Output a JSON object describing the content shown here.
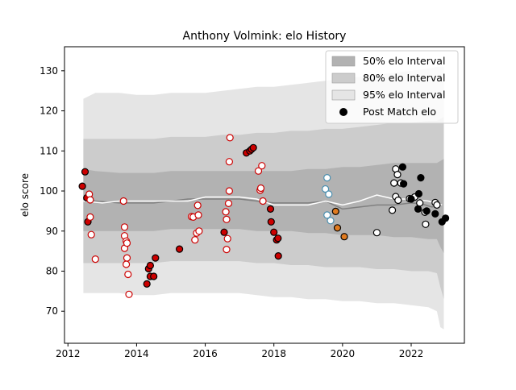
{
  "chart_data": {
    "type": "scatter",
    "title": "Anthony Volmink: elo History",
    "xlabel": "",
    "ylabel": "elo score",
    "xlim": [
      2011.9,
      2023.55
    ],
    "ylim": [
      62,
      136
    ],
    "x_ticks": [
      2012,
      2014,
      2016,
      2018,
      2020,
      2022
    ],
    "y_ticks": [
      70,
      80,
      90,
      100,
      110,
      120,
      130
    ],
    "grid": false,
    "legend_position": "top-right",
    "legend": [
      {
        "label": "50% elo Interval",
        "kind": "patch",
        "color": "#b2b2b2"
      },
      {
        "label": "80% elo Interval",
        "kind": "patch",
        "color": "#cccccc"
      },
      {
        "label": "95% elo Interval",
        "kind": "patch",
        "color": "#e5e5e5"
      },
      {
        "label": "Post Match elo",
        "kind": "marker",
        "color": "#000000"
      }
    ],
    "bands": {
      "x": [
        2012.45,
        2012.8,
        2013.5,
        2014.0,
        2014.5,
        2015.0,
        2015.5,
        2016.0,
        2016.5,
        2017.0,
        2017.5,
        2018.0,
        2018.5,
        2019.0,
        2019.5,
        2020.0,
        2020.5,
        2021.0,
        2021.5,
        2022.0,
        2022.5,
        2022.75,
        2022.85,
        2022.95
      ],
      "p95_low": [
        74.5,
        74.5,
        74.5,
        74.0,
        74.0,
        74.5,
        74.5,
        74.5,
        74.5,
        74.5,
        74.0,
        73.5,
        73.5,
        73.0,
        73.0,
        72.5,
        72.5,
        72.0,
        72.0,
        71.5,
        71.0,
        70.0,
        66.0,
        65.5
      ],
      "p80_low": [
        82.0,
        82.0,
        82.0,
        82.0,
        82.0,
        82.5,
        82.5,
        82.5,
        82.5,
        82.5,
        82.0,
        82.0,
        81.5,
        81.5,
        81.0,
        81.0,
        81.0,
        80.5,
        80.5,
        80.0,
        80.0,
        79.5,
        76.0,
        73.0
      ],
      "p50_low": [
        90.0,
        90.0,
        90.0,
        90.0,
        90.0,
        90.5,
        90.5,
        90.5,
        90.5,
        90.5,
        90.0,
        90.0,
        90.0,
        89.5,
        89.5,
        89.0,
        89.0,
        89.0,
        88.5,
        88.5,
        88.0,
        88.0,
        86.0,
        84.5
      ],
      "p50_high": [
        105.5,
        105.0,
        104.5,
        104.5,
        104.5,
        105.0,
        105.0,
        105.0,
        105.0,
        105.0,
        105.0,
        105.0,
        105.0,
        105.5,
        105.5,
        106.0,
        106.0,
        106.5,
        107.0,
        107.0,
        107.0,
        107.0,
        107.5,
        108.0
      ],
      "p80_high": [
        113.0,
        113.0,
        113.0,
        113.0,
        113.0,
        113.5,
        113.5,
        113.5,
        114.0,
        114.0,
        114.5,
        114.5,
        115.0,
        115.0,
        115.5,
        115.5,
        116.0,
        116.5,
        117.0,
        117.0,
        117.5,
        117.5,
        118.0,
        118.5
      ],
      "p95_high": [
        123.0,
        124.5,
        124.5,
        124.0,
        124.0,
        124.5,
        124.5,
        124.5,
        125.0,
        125.5,
        126.0,
        126.0,
        126.5,
        127.0,
        127.5,
        128.0,
        128.5,
        129.0,
        129.5,
        130.0,
        130.5,
        131.0,
        131.0,
        131.0
      ]
    },
    "lines": [
      {
        "color": "#808080",
        "x": [
          2012.45,
          2012.8,
          2013.5,
          2014.5,
          2015.0,
          2015.5,
          2016.0,
          2016.5,
          2017.0,
          2017.5,
          2018.0,
          2018.5,
          2019.0,
          2019.5,
          2020.0,
          2020.5,
          2021.0,
          2021.5,
          2022.0,
          2022.3,
          2022.6,
          2022.9
        ],
        "y": [
          98.0,
          97.5,
          97.0,
          97.0,
          97.5,
          98.0,
          98.0,
          98.0,
          98.0,
          97.5,
          97.0,
          97.0,
          97.0,
          97.5,
          95.5,
          96.0,
          96.5,
          96.5,
          97.0,
          96.8,
          96.0,
          96.5
        ]
      },
      {
        "color": "#ffffff",
        "x": [
          2012.45,
          2013.0,
          2013.5,
          2014.0,
          2014.5,
          2015.0,
          2015.5,
          2016.0,
          2016.5,
          2017.0,
          2017.5,
          2018.0,
          2018.5,
          2019.0,
          2019.5,
          2020.0,
          2020.5,
          2021.0,
          2021.5,
          2022.0,
          2022.5,
          2022.9
        ],
        "y": [
          97.5,
          97.0,
          97.5,
          97.5,
          97.5,
          97.5,
          97.5,
          98.5,
          98.5,
          98.5,
          98.0,
          96.5,
          96.5,
          96.5,
          97.5,
          96.5,
          97.5,
          99.0,
          98.0,
          98.0,
          97.5,
          96.5
        ]
      }
    ],
    "series": [
      {
        "color": "#cc0000",
        "edge": "#000000",
        "points": [
          [
            2012.42,
            101.2
          ],
          [
            2012.5,
            104.8
          ],
          [
            2012.55,
            98.3
          ],
          [
            2012.58,
            92.3
          ],
          [
            2014.3,
            76.8
          ],
          [
            2014.35,
            80.6
          ],
          [
            2014.4,
            81.4
          ],
          [
            2014.4,
            78.7
          ],
          [
            2014.5,
            78.7
          ],
          [
            2014.55,
            83.3
          ],
          [
            2015.25,
            85.5
          ],
          [
            2016.55,
            89.7
          ],
          [
            2017.2,
            109.5
          ],
          [
            2017.3,
            110.0
          ],
          [
            2017.35,
            110.4
          ],
          [
            2017.4,
            110.8
          ],
          [
            2017.9,
            95.5
          ],
          [
            2017.92,
            92.3
          ],
          [
            2018.0,
            89.7
          ],
          [
            2018.08,
            87.8
          ],
          [
            2018.12,
            88.2
          ],
          [
            2018.13,
            83.8
          ]
        ]
      },
      {
        "color": "#ffffff",
        "edge": "#cc0000",
        "points": [
          [
            2012.62,
            99.2
          ],
          [
            2012.65,
            97.8
          ],
          [
            2012.65,
            93.5
          ],
          [
            2012.68,
            89.1
          ],
          [
            2012.8,
            83.0
          ],
          [
            2013.62,
            97.5
          ],
          [
            2013.65,
            91.0
          ],
          [
            2013.65,
            88.8
          ],
          [
            2013.65,
            85.7
          ],
          [
            2013.7,
            87.5
          ],
          [
            2013.72,
            87.0
          ],
          [
            2013.72,
            83.3
          ],
          [
            2013.7,
            81.7
          ],
          [
            2013.75,
            79.2
          ],
          [
            2013.78,
            74.2
          ],
          [
            2015.6,
            93.6
          ],
          [
            2015.65,
            93.5
          ],
          [
            2015.7,
            87.8
          ],
          [
            2015.75,
            89.5
          ],
          [
            2015.78,
            96.4
          ],
          [
            2015.8,
            94.0
          ],
          [
            2015.82,
            90.0
          ],
          [
            2016.6,
            94.8
          ],
          [
            2016.62,
            92.9
          ],
          [
            2016.62,
            85.4
          ],
          [
            2016.65,
            88.1
          ],
          [
            2016.68,
            96.9
          ],
          [
            2016.7,
            100.0
          ],
          [
            2016.7,
            107.3
          ],
          [
            2016.72,
            113.3
          ],
          [
            2017.55,
            105.0
          ],
          [
            2017.6,
            100.2
          ],
          [
            2017.62,
            100.7
          ],
          [
            2017.65,
            106.3
          ],
          [
            2017.68,
            97.5
          ]
        ]
      },
      {
        "color": "#ffffff",
        "edge": "#4a8fb0",
        "points": [
          [
            2019.5,
            100.5
          ],
          [
            2019.55,
            94.0
          ],
          [
            2019.55,
            103.3
          ],
          [
            2019.6,
            99.2
          ],
          [
            2019.65,
            92.6
          ]
        ]
      },
      {
        "color": "#e07b20",
        "edge": "#000000",
        "points": [
          [
            2019.8,
            94.9
          ],
          [
            2019.85,
            90.8
          ],
          [
            2020.05,
            88.6
          ]
        ]
      },
      {
        "color": "#ffffff",
        "edge": "#000000",
        "points": [
          [
            2021.0,
            89.6
          ],
          [
            2021.45,
            95.2
          ],
          [
            2021.5,
            102.0
          ],
          [
            2021.55,
            105.5
          ],
          [
            2021.55,
            98.6
          ],
          [
            2021.6,
            104.1
          ],
          [
            2021.62,
            97.7
          ],
          [
            2021.7,
            102.0
          ],
          [
            2021.95,
            98.1
          ],
          [
            2022.1,
            98.5
          ],
          [
            2022.25,
            97.0
          ],
          [
            2022.4,
            94.7
          ],
          [
            2022.42,
            91.7
          ],
          [
            2022.7,
            97.1
          ],
          [
            2022.75,
            96.5
          ]
        ]
      },
      {
        "color": "#000000",
        "edge": "#000000",
        "points": [
          [
            2021.75,
            106.0
          ],
          [
            2021.78,
            101.8
          ],
          [
            2022.0,
            98.0
          ],
          [
            2022.2,
            95.5
          ],
          [
            2022.22,
            99.3
          ],
          [
            2022.28,
            103.3
          ],
          [
            2022.45,
            95.0
          ],
          [
            2022.7,
            94.3
          ],
          [
            2022.9,
            92.3
          ],
          [
            2023.0,
            93.2
          ]
        ]
      }
    ]
  }
}
